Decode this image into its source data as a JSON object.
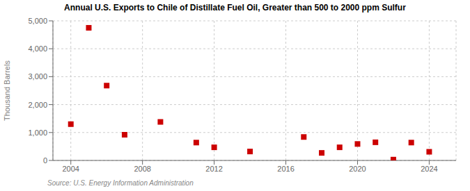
{
  "chart_data": {
    "type": "scatter",
    "title": "Annual U.S. Exports to Chile of Distillate Fuel Oil, Greater than 500 to 2000 ppm Sulfur",
    "ylabel": "Thousand Barrels",
    "annotations": [
      "Source: U.S. Energy Information Administration"
    ],
    "x": [
      2004,
      2005,
      2006,
      2007,
      2009,
      2011,
      2012,
      2014,
      2017,
      2018,
      2019,
      2020,
      2021,
      2022,
      2023,
      2024
    ],
    "values": [
      1300,
      4750,
      2680,
      920,
      1380,
      640,
      470,
      320,
      840,
      270,
      470,
      590,
      650,
      30,
      640,
      310
    ],
    "color": "#cc0000",
    "marker": "square",
    "xlim": [
      2003.0,
      2025.5
    ],
    "xticks": [
      2004,
      2008,
      2012,
      2016,
      2020,
      2024
    ],
    "ylim": [
      0,
      5000
    ],
    "yticks": [
      0,
      {
        "value": 1000,
        "label": "1,000"
      },
      {
        "value": 2000,
        "label": "2,000"
      },
      {
        "value": 3000,
        "label": "3,000"
      },
      {
        "value": 4000,
        "label": "4,000"
      },
      {
        "value": 5000,
        "label": "5,000"
      }
    ],
    "grid": true
  }
}
